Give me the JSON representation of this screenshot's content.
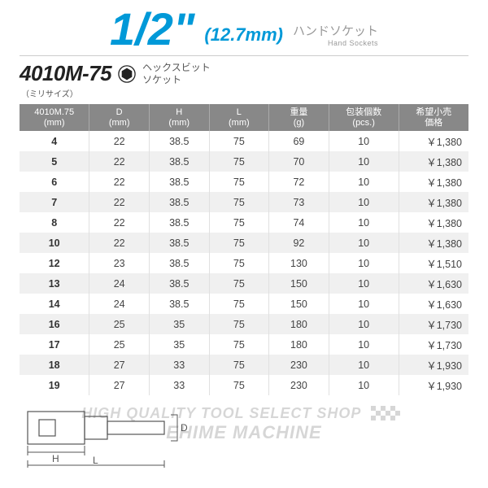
{
  "header": {
    "size_main": "1/2\"",
    "size_mm": "(12.7mm)",
    "hand_socket_jp": "ハンドソケット",
    "hand_socket_en": "Hand Sockets"
  },
  "product": {
    "code": "4010M-75",
    "sub": "（ミリサイズ）",
    "desc_line1": "ヘックスビット",
    "desc_line2": "ソケット"
  },
  "table": {
    "columns": [
      {
        "l1": "4010M.75",
        "l2": "(mm)",
        "w": "14%"
      },
      {
        "l1": "D",
        "l2": "(mm)",
        "w": "12%"
      },
      {
        "l1": "H",
        "l2": "(mm)",
        "w": "12%"
      },
      {
        "l1": "L",
        "l2": "(mm)",
        "w": "12%"
      },
      {
        "l1": "重量",
        "l2": "(g)",
        "w": "12%"
      },
      {
        "l1": "包装個数",
        "l2": "(pcs.)",
        "w": "14%"
      },
      {
        "l1": "希望小売",
        "l2": "価格",
        "w": "14%"
      }
    ],
    "rows": [
      [
        "4",
        "22",
        "38.5",
        "75",
        "69",
        "10",
        "￥1,380"
      ],
      [
        "5",
        "22",
        "38.5",
        "75",
        "70",
        "10",
        "￥1,380"
      ],
      [
        "6",
        "22",
        "38.5",
        "75",
        "72",
        "10",
        "￥1,380"
      ],
      [
        "7",
        "22",
        "38.5",
        "75",
        "73",
        "10",
        "￥1,380"
      ],
      [
        "8",
        "22",
        "38.5",
        "75",
        "74",
        "10",
        "￥1,380"
      ],
      [
        "10",
        "22",
        "38.5",
        "75",
        "92",
        "10",
        "￥1,380"
      ],
      [
        "12",
        "23",
        "38.5",
        "75",
        "130",
        "10",
        "￥1,510"
      ],
      [
        "13",
        "24",
        "38.5",
        "75",
        "150",
        "10",
        "￥1,630"
      ],
      [
        "14",
        "24",
        "38.5",
        "75",
        "150",
        "10",
        "￥1,630"
      ],
      [
        "16",
        "25",
        "35",
        "75",
        "180",
        "10",
        "￥1,730"
      ],
      [
        "17",
        "25",
        "35",
        "75",
        "180",
        "10",
        "￥1,730"
      ],
      [
        "18",
        "27",
        "33",
        "75",
        "230",
        "10",
        "￥1,930"
      ],
      [
        "19",
        "27",
        "33",
        "75",
        "230",
        "10",
        "￥1,930"
      ]
    ]
  },
  "watermark": {
    "text": "HIGH QUALITY TOOL SELECT SHOP",
    "brand": "EHIME MACHINE"
  },
  "diagram": {
    "labels": {
      "D": "D",
      "H": "H",
      "L": "L"
    }
  },
  "colors": {
    "accent": "#0099d8",
    "header_bg": "#888888",
    "row_alt": "#f0f0f0",
    "text": "#444444"
  }
}
